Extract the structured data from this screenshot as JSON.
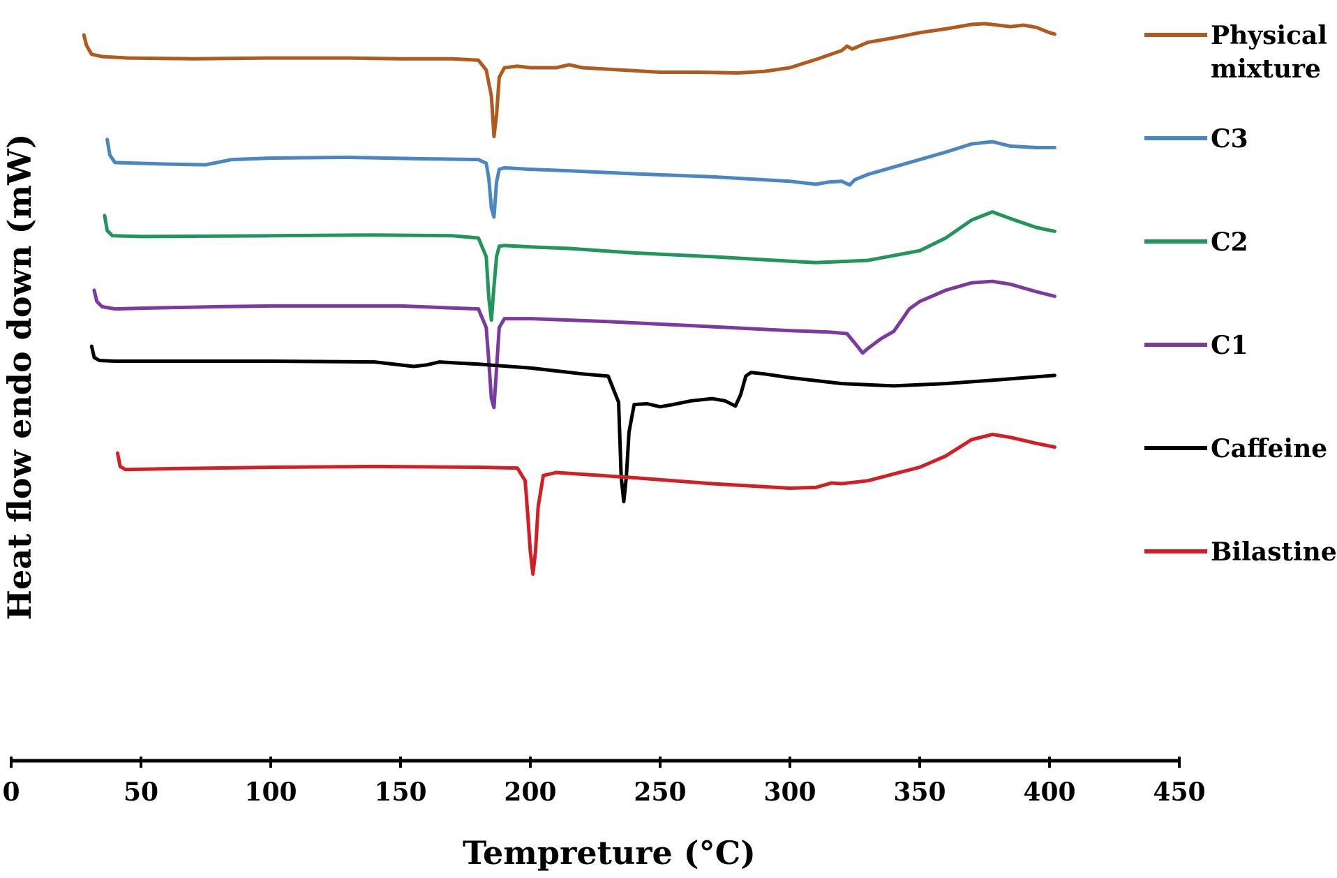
{
  "chart_data": {
    "type": "line",
    "title": "",
    "xlabel": "Tempreture (°C)",
    "ylabel": "Heat flow endo down (mW)",
    "xlim": [
      0,
      450
    ],
    "x_ticks": [
      0,
      50,
      100,
      150,
      200,
      250,
      300,
      350,
      400,
      450
    ],
    "ylim": [
      0,
      100
    ],
    "y_ticks": [],
    "grid": false,
    "legend_position": "right",
    "series": [
      {
        "name": "Physical mixture",
        "color": "#b05a1e",
        "x": [
          28,
          29,
          31,
          35,
          45,
          70,
          100,
          130,
          150,
          160,
          170,
          180,
          183,
          185,
          186,
          187,
          188,
          190,
          195,
          200,
          210,
          215,
          220,
          250,
          265,
          280,
          290,
          300,
          310,
          320,
          322,
          324,
          330,
          340,
          350,
          360,
          370,
          375,
          380,
          385,
          390,
          395,
          400,
          402
        ],
        "y": [
          97.2,
          95.8,
          94.6,
          94.3,
          94.1,
          94.0,
          94.1,
          94.1,
          94.0,
          94.0,
          94.0,
          93.8,
          92.5,
          89.0,
          83.6,
          86.5,
          91.5,
          92.8,
          93.0,
          92.8,
          92.8,
          93.2,
          92.8,
          92.2,
          92.2,
          92.1,
          92.3,
          92.8,
          93.9,
          95.1,
          95.7,
          95.3,
          96.2,
          96.8,
          97.5,
          98.0,
          98.6,
          98.7,
          98.5,
          98.3,
          98.5,
          98.2,
          97.5,
          97.3
        ]
      },
      {
        "name": "C3",
        "color": "#4a86c4",
        "x": [
          37,
          38,
          40,
          50,
          60,
          75,
          85,
          100,
          130,
          160,
          180,
          183,
          184,
          185,
          186,
          187,
          188,
          190,
          200,
          215,
          240,
          270,
          300,
          310,
          315,
          320,
          323,
          325,
          330,
          340,
          350,
          360,
          370,
          378,
          385,
          395,
          402
        ],
        "y": [
          83.2,
          81.1,
          80.1,
          80.0,
          79.9,
          79.8,
          80.5,
          80.7,
          80.8,
          80.6,
          80.5,
          80.0,
          78.0,
          74.0,
          72.8,
          77.5,
          79.2,
          79.4,
          79.2,
          79.0,
          78.6,
          78.2,
          77.6,
          77.2,
          77.5,
          77.6,
          77.1,
          77.8,
          78.5,
          79.5,
          80.5,
          81.5,
          82.6,
          82.9,
          82.3,
          82.1,
          82.1
        ]
      },
      {
        "name": "C2",
        "color": "#21955a",
        "x": [
          36,
          37,
          39,
          50,
          100,
          140,
          170,
          180,
          183,
          184,
          185,
          186,
          187,
          188,
          190,
          200,
          215,
          240,
          270,
          300,
          310,
          330,
          350,
          360,
          370,
          378,
          385,
          395,
          402
        ],
        "y": [
          73.0,
          71.0,
          70.3,
          70.2,
          70.3,
          70.4,
          70.3,
          70.0,
          67.5,
          62.0,
          59.0,
          63.5,
          67.5,
          68.9,
          69.0,
          68.8,
          68.6,
          68.0,
          67.5,
          66.9,
          66.7,
          67.0,
          68.3,
          70.0,
          72.4,
          73.5,
          72.6,
          71.4,
          70.9
        ]
      },
      {
        "name": "C1",
        "color": "#7a3aa1",
        "x": [
          32,
          33,
          35,
          40,
          50,
          80,
          100,
          150,
          180,
          183,
          184,
          185,
          186,
          187,
          188,
          190,
          200,
          230,
          260,
          300,
          315,
          322,
          326,
          328,
          330,
          335,
          340,
          344,
          346,
          350,
          360,
          370,
          378,
          385,
          395,
          402
        ],
        "y": [
          63.0,
          61.5,
          60.8,
          60.5,
          60.6,
          60.8,
          60.9,
          60.9,
          60.5,
          58.0,
          53.5,
          48.5,
          47.3,
          52.5,
          58.0,
          59.2,
          59.2,
          58.8,
          58.3,
          57.6,
          57.4,
          57.2,
          55.5,
          54.6,
          55.2,
          56.5,
          57.5,
          59.5,
          60.5,
          61.5,
          63.0,
          64.0,
          64.2,
          63.8,
          62.8,
          62.2
        ]
      },
      {
        "name": "Caffeine",
        "color": "#000000",
        "x": [
          31,
          32,
          34,
          40,
          60,
          100,
          140,
          150,
          155,
          160,
          165,
          170,
          180,
          200,
          220,
          230,
          234,
          235,
          236,
          237,
          238,
          240,
          245,
          250,
          255,
          262,
          270,
          275,
          279,
          281,
          283,
          285,
          290,
          300,
          320,
          340,
          360,
          380,
          402
        ],
        "y": [
          55.5,
          54.0,
          53.6,
          53.5,
          53.5,
          53.5,
          53.4,
          53.0,
          52.8,
          53.0,
          53.4,
          53.3,
          53.1,
          52.6,
          51.8,
          51.5,
          48.0,
          38.0,
          34.7,
          38.0,
          44.0,
          47.7,
          47.8,
          47.4,
          47.7,
          48.2,
          48.5,
          48.2,
          47.5,
          49.0,
          51.5,
          52.0,
          51.8,
          51.3,
          50.5,
          50.2,
          50.5,
          51.0,
          51.6
        ]
      },
      {
        "name": "Bilastine",
        "color": "#d11f25",
        "x": [
          41,
          42,
          44,
          60,
          100,
          140,
          180,
          195,
          198,
          199,
          200,
          201,
          202,
          203,
          205,
          210,
          240,
          270,
          300,
          310,
          316,
          320,
          330,
          340,
          350,
          360,
          370,
          378,
          385,
          395,
          402
        ],
        "y": [
          41.2,
          39.4,
          39.0,
          39.1,
          39.3,
          39.4,
          39.3,
          39.2,
          37.5,
          33.0,
          28.0,
          25.0,
          28.0,
          34.0,
          38.2,
          38.6,
          37.9,
          37.1,
          36.5,
          36.6,
          37.2,
          37.1,
          37.5,
          38.4,
          39.3,
          40.8,
          43.0,
          43.7,
          43.3,
          42.5,
          42.0
        ]
      }
    ]
  }
}
